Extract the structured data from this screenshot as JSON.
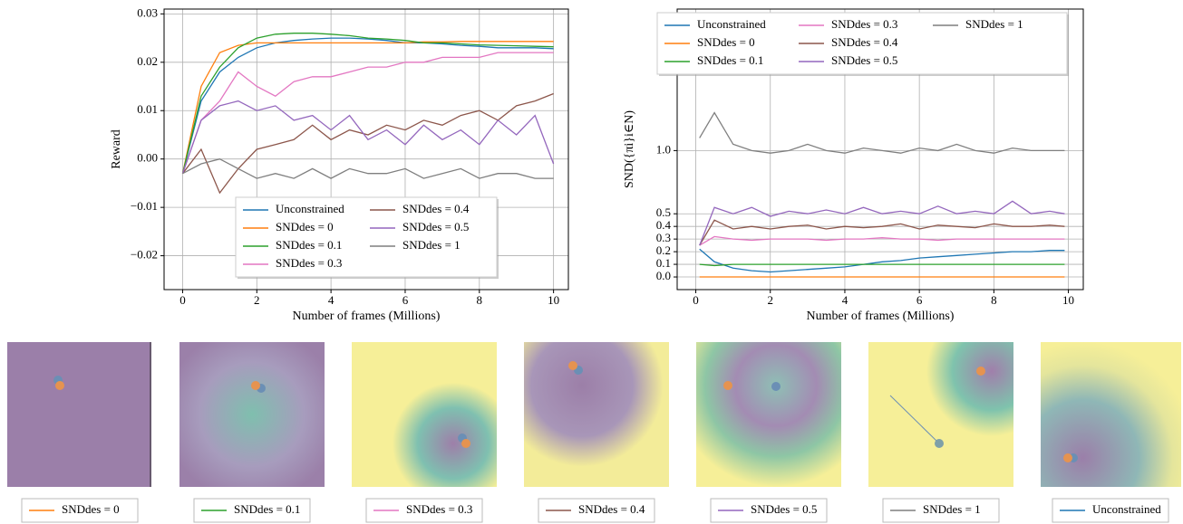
{
  "chart_data": [
    {
      "type": "line",
      "ylabel": "Reward",
      "xlabel": "Number of frames (Millions)",
      "x": [
        0,
        0.5,
        1,
        1.5,
        2,
        2.5,
        3,
        3.5,
        4,
        4.5,
        5,
        5.5,
        6,
        6.5,
        7,
        7.5,
        8,
        8.5,
        9,
        9.5,
        10
      ],
      "xlim": [
        -0.5,
        10.4
      ],
      "ylim": [
        -0.027,
        0.031
      ],
      "xticks": [
        0,
        2,
        4,
        6,
        8,
        10
      ],
      "yticks": [
        {
          "value": -0.02,
          "label": "−0.02"
        },
        {
          "value": -0.01,
          "label": "−0.01"
        },
        {
          "value": 0,
          "label": "0.00"
        },
        {
          "value": 0.01,
          "label": "0.01"
        },
        {
          "value": 0.02,
          "label": "0.02"
        },
        {
          "value": 0.03,
          "label": "0.03"
        }
      ],
      "grid": true,
      "legend": "lower center",
      "legend_columns": 2,
      "series": [
        {
          "name": "Unconstrained",
          "color": "#1f77b4",
          "values": [
            -0.003,
            0.012,
            0.018,
            0.021,
            0.023,
            0.024,
            0.0245,
            0.0248,
            0.025,
            0.025,
            0.0248,
            0.0245,
            0.024,
            0.024,
            0.0238,
            0.0235,
            0.0233,
            0.023,
            0.023,
            0.023,
            0.0228
          ]
        },
        {
          "name": "SNDdes = 0",
          "color": "#ff7f0e",
          "values": [
            -0.003,
            0.015,
            0.022,
            0.0235,
            0.024,
            0.024,
            0.024,
            0.024,
            0.024,
            0.024,
            0.024,
            0.024,
            0.024,
            0.0242,
            0.0242,
            0.0243,
            0.0243,
            0.0243,
            0.0243,
            0.0243,
            0.0243
          ]
        },
        {
          "name": "SNDdes = 0.1",
          "color": "#2ca02c",
          "values": [
            -0.003,
            0.013,
            0.019,
            0.023,
            0.025,
            0.0258,
            0.026,
            0.026,
            0.0258,
            0.0255,
            0.025,
            0.0248,
            0.0245,
            0.024,
            0.024,
            0.0238,
            0.0236,
            0.0235,
            0.0234,
            0.0233,
            0.0232
          ]
        },
        {
          "name": "SNDdes = 0.3",
          "color": "#e377c2",
          "values": [
            -0.003,
            0.008,
            0.012,
            0.018,
            0.015,
            0.013,
            0.016,
            0.017,
            0.017,
            0.018,
            0.019,
            0.019,
            0.02,
            0.02,
            0.021,
            0.021,
            0.021,
            0.022,
            0.022,
            0.022,
            0.022
          ]
        },
        {
          "name": "SNDdes = 0.4",
          "color": "#8c564b",
          "values": [
            -0.003,
            0.002,
            -0.007,
            -0.002,
            0.002,
            0.003,
            0.004,
            0.007,
            0.004,
            0.006,
            0.005,
            0.007,
            0.006,
            0.008,
            0.007,
            0.009,
            0.01,
            0.008,
            0.011,
            0.012,
            0.0135
          ]
        },
        {
          "name": "SNDdes = 0.5",
          "color": "#9467bd",
          "values": [
            -0.003,
            0.008,
            0.011,
            0.012,
            0.01,
            0.011,
            0.008,
            0.009,
            0.006,
            0.009,
            0.004,
            0.006,
            0.003,
            0.007,
            0.004,
            0.006,
            0.003,
            0.008,
            0.005,
            0.009,
            -0.001
          ]
        },
        {
          "name": "SNDdes = 1",
          "color": "#7f7f7f",
          "values": [
            -0.003,
            -0.001,
            0.0,
            -0.002,
            -0.004,
            -0.003,
            -0.004,
            -0.002,
            -0.004,
            -0.002,
            -0.003,
            -0.003,
            -0.002,
            -0.004,
            -0.003,
            -0.002,
            -0.004,
            -0.003,
            -0.003,
            -0.004,
            -0.004
          ]
        }
      ]
    },
    {
      "type": "line",
      "ylabel": "SND({πi}i∈N)",
      "xlabel": "Number of frames (Millions)",
      "x": [
        0.1,
        0.5,
        1,
        1.5,
        2,
        2.5,
        3,
        3.5,
        4,
        4.5,
        5,
        5.5,
        6,
        6.5,
        7,
        7.5,
        8,
        8.5,
        9,
        9.5,
        9.9
      ],
      "xlim": [
        -0.5,
        10.4
      ],
      "ylim": [
        -0.1,
        2.12
      ],
      "xticks": [
        0,
        2,
        4,
        6,
        8,
        10
      ],
      "yticks": [
        {
          "value": 0,
          "label": "0.0"
        },
        0.1,
        0.2,
        0.3,
        0.4,
        0.5,
        {
          "value": 1,
          "label": "1.0"
        }
      ],
      "grid": true,
      "legend": "upper center",
      "legend_columns": 3,
      "series": [
        {
          "name": "Unconstrained",
          "color": "#1f77b4",
          "values": [
            0.22,
            0.12,
            0.07,
            0.05,
            0.04,
            0.05,
            0.06,
            0.07,
            0.08,
            0.1,
            0.12,
            0.13,
            0.15,
            0.16,
            0.17,
            0.18,
            0.19,
            0.2,
            0.2,
            0.21,
            0.21
          ]
        },
        {
          "name": "SNDdes = 0",
          "color": "#ff7f0e",
          "values": [
            0,
            0,
            0,
            0,
            0,
            0,
            0,
            0,
            0,
            0,
            0,
            0,
            0,
            0,
            0,
            0,
            0,
            0,
            0,
            0,
            0
          ]
        },
        {
          "name": "SNDdes = 0.1",
          "color": "#2ca02c",
          "values": [
            0.1,
            0.09,
            0.1,
            0.1,
            0.1,
            0.1,
            0.1,
            0.1,
            0.1,
            0.1,
            0.1,
            0.1,
            0.1,
            0.1,
            0.1,
            0.1,
            0.1,
            0.1,
            0.1,
            0.1,
            0.1
          ]
        },
        {
          "name": "SNDdes = 0.3",
          "color": "#e377c2",
          "values": [
            0.25,
            0.32,
            0.3,
            0.29,
            0.3,
            0.3,
            0.3,
            0.29,
            0.3,
            0.3,
            0.31,
            0.3,
            0.3,
            0.29,
            0.3,
            0.3,
            0.3,
            0.3,
            0.3,
            0.3,
            0.3
          ]
        },
        {
          "name": "SNDdes = 0.4",
          "color": "#8c564b",
          "values": [
            0.25,
            0.45,
            0.38,
            0.4,
            0.38,
            0.4,
            0.41,
            0.38,
            0.4,
            0.39,
            0.4,
            0.42,
            0.38,
            0.41,
            0.4,
            0.39,
            0.42,
            0.4,
            0.4,
            0.41,
            0.4
          ]
        },
        {
          "name": "SNDdes = 0.5",
          "color": "#9467bd",
          "values": [
            0.25,
            0.55,
            0.5,
            0.55,
            0.48,
            0.52,
            0.5,
            0.53,
            0.5,
            0.55,
            0.5,
            0.52,
            0.5,
            0.56,
            0.5,
            0.52,
            0.5,
            0.6,
            0.5,
            0.52,
            0.5
          ]
        },
        {
          "name": "SNDdes = 1",
          "color": "#7f7f7f",
          "values": [
            1.1,
            1.3,
            1.05,
            1.0,
            0.98,
            1.0,
            1.05,
            1.0,
            0.98,
            1.02,
            1.0,
            0.98,
            1.02,
            1.0,
            1.05,
            1.0,
            0.98,
            1.02,
            1.0,
            1.0,
            1.0
          ]
        }
      ]
    }
  ],
  "panels": [
    {
      "legend": "SNDdes = 0",
      "color": "#ff7f0e"
    },
    {
      "legend": "SNDdes = 0.1",
      "color": "#2ca02c"
    },
    {
      "legend": "SNDdes = 0.3",
      "color": "#e377c2"
    },
    {
      "legend": "SNDdes = 0.4",
      "color": "#8c564b"
    },
    {
      "legend": "SNDdes = 0.5",
      "color": "#9467bd"
    },
    {
      "legend": "SNDdes = 1",
      "color": "#7f7f7f"
    },
    {
      "legend": "Unconstrained",
      "color": "#1f77b4"
    }
  ]
}
